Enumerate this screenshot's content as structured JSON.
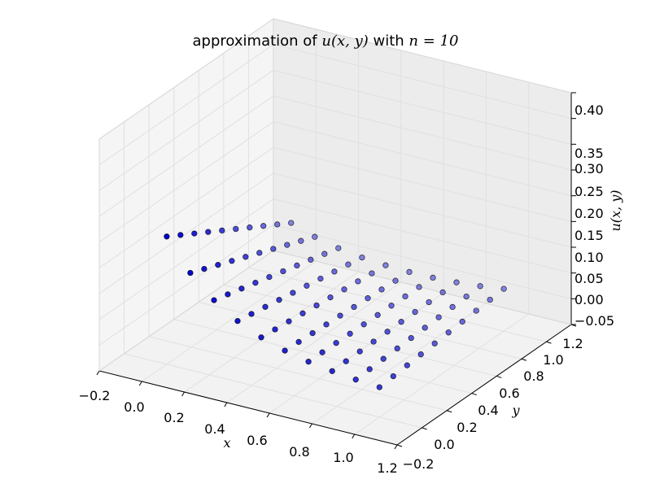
{
  "chart_data": {
    "type": "scatter",
    "title_text": "approximation of ",
    "title_math_1": "u(x, y)",
    "title_mid": " with ",
    "title_math_2": "n = 10",
    "xlabel": "x",
    "ylabel": "y",
    "zlabel": "u(x, y)",
    "xlim": [
      -0.2,
      1.2
    ],
    "ylim": [
      -0.2,
      1.2
    ],
    "zlim": [
      -0.05,
      0.4
    ],
    "x_ticks": [
      "−0.2",
      "0.0",
      "0.2",
      "0.4",
      "0.6",
      "0.8",
      "1.0",
      "1.2"
    ],
    "y_ticks": [
      "−0.2",
      "0.0",
      "0.2",
      "0.4",
      "0.6",
      "0.8",
      "1.0",
      "1.2"
    ],
    "z_ticks": [
      "−0.05",
      "0.00",
      "0.05",
      "0.10",
      "0.15",
      "0.20",
      "0.25",
      "0.30",
      "0.35",
      "0.40"
    ],
    "grid": true,
    "marker_color": "#0000cd",
    "edge_color": "#000000",
    "n": 10,
    "grid_points_per_axis": 10,
    "x_range_of_points": [
      0,
      1
    ],
    "y_range_of_points": [
      0,
      1
    ],
    "surface": "z peaks near 0.26 along x = 0 edge, decays toward x = 1 and y = 1"
  }
}
